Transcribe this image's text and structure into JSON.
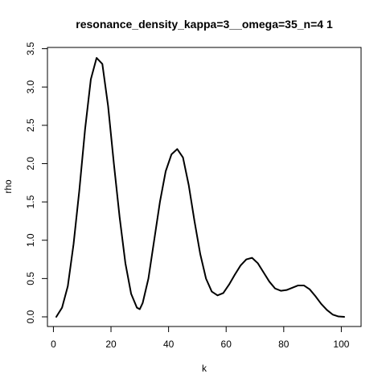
{
  "chart_data": {
    "type": "line",
    "title": "resonance_density_kappa=3__omega=35_n=4 1",
    "xlabel": "k",
    "ylabel": "rho",
    "xlim": [
      1,
      101
    ],
    "ylim": [
      0,
      3.38
    ],
    "x_ticks": [
      0,
      20,
      40,
      60,
      80,
      100
    ],
    "x_tick_labels": [
      "0",
      "20",
      "40",
      "60",
      "80",
      "100"
    ],
    "y_ticks": [
      0.0,
      0.5,
      1.0,
      1.5,
      2.0,
      2.5,
      3.0,
      3.5
    ],
    "y_tick_labels": [
      "0.0",
      "0.5",
      "1.0",
      "1.5",
      "2.0",
      "2.5",
      "3.0",
      "3.5"
    ],
    "grid": false,
    "line_color": "#000000",
    "series": [
      {
        "x": [
          1,
          3,
          5,
          7,
          9,
          11,
          13,
          15,
          17,
          19,
          21,
          23,
          25,
          27,
          29,
          30,
          31,
          33,
          35,
          37,
          39,
          41,
          43,
          45,
          47,
          49,
          51,
          53,
          55,
          57,
          59,
          61,
          63,
          65,
          67,
          69,
          71,
          73,
          75,
          77,
          79,
          81,
          83,
          85,
          87,
          89,
          91,
          93,
          95,
          97,
          99,
          101
        ],
        "y": [
          0.0,
          0.12,
          0.4,
          0.95,
          1.65,
          2.45,
          3.1,
          3.38,
          3.3,
          2.75,
          2.0,
          1.3,
          0.7,
          0.3,
          0.12,
          0.1,
          0.18,
          0.5,
          1.0,
          1.5,
          1.9,
          2.12,
          2.19,
          2.08,
          1.72,
          1.25,
          0.82,
          0.5,
          0.33,
          0.28,
          0.31,
          0.42,
          0.55,
          0.67,
          0.75,
          0.77,
          0.7,
          0.58,
          0.46,
          0.37,
          0.34,
          0.35,
          0.38,
          0.41,
          0.41,
          0.36,
          0.27,
          0.17,
          0.09,
          0.03,
          0.005,
          0.0
        ]
      }
    ]
  }
}
